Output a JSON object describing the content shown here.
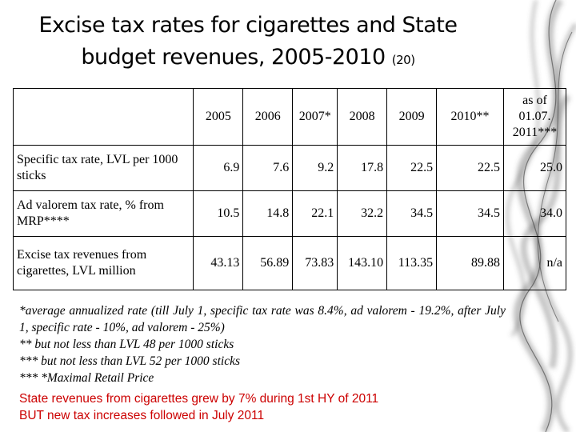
{
  "title": {
    "line1": "Excise tax rates for cigarettes and State",
    "line2": "budget revenues, 2005-2010",
    "slide_number": "(20)"
  },
  "table": {
    "headers": [
      "",
      "2005",
      "2006",
      "2007*",
      "2008",
      "2009",
      "2010**",
      "as of 01.07. 2011***"
    ],
    "rows": [
      {
        "label": "Specific tax rate, LVL per 1000 sticks",
        "values": [
          "6.9",
          "7.6",
          "9.2",
          "17.8",
          "22.5",
          "22.5",
          "25.0"
        ]
      },
      {
        "label": "Ad valorem tax rate, % from MRP****",
        "values": [
          "10.5",
          "14.8",
          "22.1",
          "32.2",
          "34.5",
          "34.5",
          "34.0"
        ]
      },
      {
        "label": "Excise tax revenues from cigarettes, LVL million",
        "values": [
          "43.13",
          "56.89",
          "73.83",
          "143.10",
          "113.35",
          "89.88",
          "n/a"
        ]
      }
    ]
  },
  "notes": [
    "*average annualized rate (till July 1, specific tax rate was 8.4%, ad valorem - 19.2%, after July 1, specific rate - 10%, ad valorem - 25%)",
    "** but not less than LVL 48 per 1000 sticks",
    "*** but not less than LVL 52 per 1000 sticks",
    "*** *Maximal Retail Price"
  ],
  "highlight": [
    "State revenues from cigarettes grew by 7% during 1st HY of 2011",
    "BUT new tax increases followed in July 2011"
  ]
}
